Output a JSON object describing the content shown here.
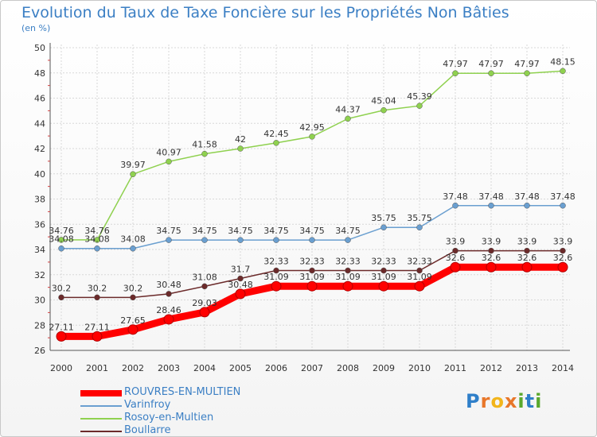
{
  "title": "Evolution du Taux de Taxe Foncière sur les Propriétés Non Bâties",
  "unit_label": "(en %)",
  "logo": {
    "text": "Proxiti",
    "letters": [
      "P",
      "r",
      "o",
      "x",
      "i",
      "t",
      "i"
    ],
    "colors": [
      "#2f7fc9",
      "#e8772a",
      "#f2b51b",
      "#e8772a",
      "#5aa82d",
      "#2f7fc9",
      "#5aa82d"
    ]
  },
  "chart_data": {
    "type": "line",
    "title": "Evolution du Taux de Taxe Foncière sur les Propriétés Non Bâties",
    "ylabel": "(en %)",
    "ylim": [
      26,
      50
    ],
    "yticks": [
      26,
      28,
      30,
      32,
      34,
      36,
      38,
      40,
      42,
      44,
      46,
      48,
      50
    ],
    "grid": true,
    "legend_position": "bottom-left",
    "x": [
      "2000",
      "2001",
      "2002",
      "2003",
      "2004",
      "2005",
      "2006",
      "2007",
      "2008",
      "2009",
      "2010",
      "2011",
      "2012",
      "2013",
      "2014"
    ],
    "series": [
      {
        "name": "ROUVRES-EN-MULTIEN",
        "color": "#ff0000",
        "values": [
          27.11,
          27.11,
          27.65,
          28.46,
          29.03,
          30.48,
          31.09,
          31.09,
          31.09,
          31.09,
          31.09,
          32.6,
          32.6,
          32.6,
          32.6
        ]
      },
      {
        "name": "Varinfroy",
        "color": "#6a9fd0",
        "values": [
          34.08,
          34.08,
          34.08,
          34.75,
          34.75,
          34.75,
          34.75,
          34.75,
          34.75,
          35.75,
          35.75,
          37.48,
          37.48,
          37.48,
          37.48
        ]
      },
      {
        "name": "Rosoy-en-Multien",
        "color": "#8fd14f",
        "values": [
          34.76,
          34.76,
          39.97,
          40.97,
          41.58,
          42,
          42.45,
          42.95,
          44.37,
          45.04,
          45.39,
          47.97,
          47.97,
          47.97,
          48.15
        ]
      },
      {
        "name": "Boullarre",
        "color": "#6b2a2a",
        "values": [
          30.2,
          30.2,
          30.2,
          30.48,
          31.08,
          31.7,
          32.33,
          32.33,
          32.33,
          32.33,
          32.33,
          33.9,
          33.9,
          33.9,
          33.9
        ]
      }
    ]
  }
}
